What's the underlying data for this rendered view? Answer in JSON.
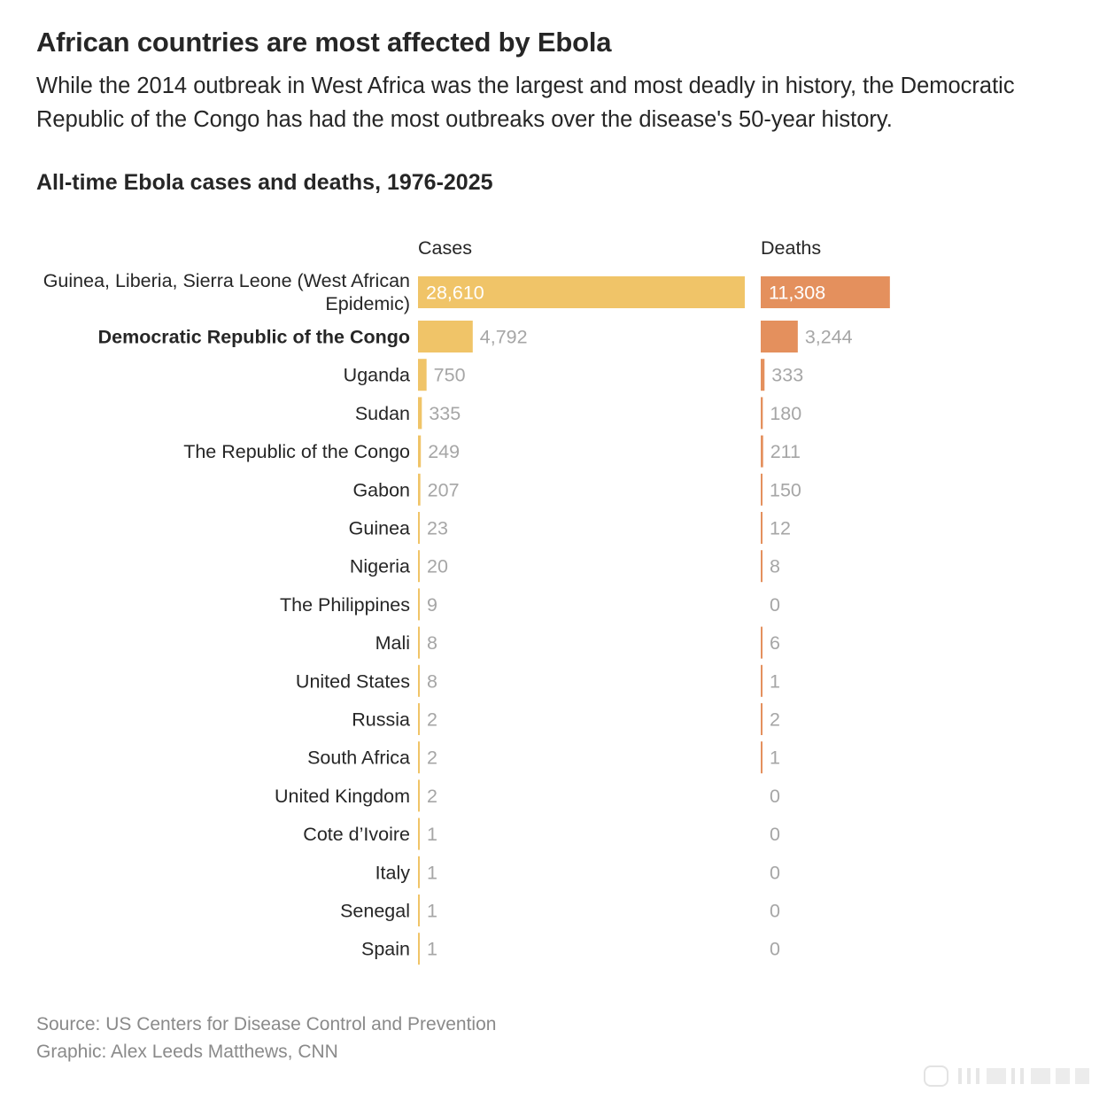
{
  "header": {
    "title": "African countries are most affected by Ebola",
    "subtitle": "While the 2014 outbreak in West Africa was the largest and most deadly in history, the Democratic Republic of the Congo has had the most outbreaks over the disease's 50-year history."
  },
  "footer": {
    "source": "Source: US Centers for Disease Control and Prevention",
    "credit": "Graphic: Alex Leeds Matthews, CNN"
  },
  "colors": {
    "cases_bar": "#f0c468",
    "deaths_bar": "#e4905d",
    "label_outside": "#a6a6a6",
    "label_inside": "#ffffff"
  },
  "chart_data": {
    "type": "bar",
    "title": "All-time Ebola cases and deaths, 1976-2025",
    "orientation": "horizontal",
    "categories": [
      "Guinea, Liberia, Sierra Leone (West African Epidemic)",
      "Democratic Republic of the Congo",
      "Uganda",
      "Sudan",
      "The Republic of the Congo",
      "Gabon",
      "Guinea",
      "Nigeria",
      "The Philippines",
      "Mali",
      "United States",
      "Russia",
      "South Africa",
      "United Kingdom",
      "Cote d’Ivoire",
      "Italy",
      "Senegal",
      "Spain"
    ],
    "highlighted_category": "Democratic Republic of the Congo",
    "series": [
      {
        "name": "Cases",
        "values": [
          28610,
          4792,
          750,
          335,
          249,
          207,
          23,
          20,
          9,
          8,
          8,
          2,
          2,
          2,
          1,
          1,
          1,
          1
        ],
        "labels": [
          "28,610",
          "4,792",
          "750",
          "335",
          "249",
          "207",
          "23",
          "20",
          "9",
          "8",
          "8",
          "2",
          "2",
          "2",
          "1",
          "1",
          "1",
          "1"
        ]
      },
      {
        "name": "Deaths",
        "values": [
          11308,
          3244,
          333,
          180,
          211,
          150,
          12,
          8,
          0,
          6,
          1,
          2,
          1,
          0,
          0,
          0,
          0,
          0
        ],
        "labels": [
          "11,308",
          "3,244",
          "333",
          "180",
          "211",
          "150",
          "12",
          "8",
          "0",
          "6",
          "1",
          "2",
          "1",
          "0",
          "0",
          "0",
          "0",
          "0"
        ]
      }
    ],
    "scale": "linear, shared between panels",
    "xlim": [
      0,
      28610
    ],
    "grid": false,
    "legend": "none; series names shown as column headers"
  }
}
